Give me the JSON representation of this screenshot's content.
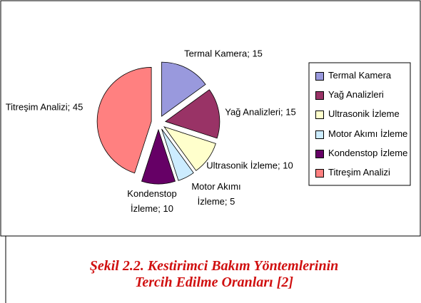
{
  "chart_data": {
    "type": "pie",
    "categories": [
      "Termal Kamera",
      "Yağ Analizleri",
      "Ultrasonik İzleme",
      "Motor Akımı İzleme",
      "Kondenstop İzleme",
      "Titreşim Analizi"
    ],
    "values": [
      15,
      15,
      10,
      5,
      10,
      45
    ],
    "value_labels": [
      "Termal Kamera; 15",
      "Yağ Analizleri; 15",
      "Ultrasonik İzleme; 10",
      "Motor Akımı İzleme; 5",
      "Kondenstop İzleme; 10",
      "Titreşim Analizi; 45"
    ],
    "colors": [
      "#9999dd",
      "#993366",
      "#ffffcc",
      "#ccecff",
      "#660066",
      "#ff8080"
    ],
    "legend": "right",
    "caption": "Şekil 2.2. Kestirimci Bakım Yöntemlerinin Tercih Edilme Oranları [2]"
  }
}
